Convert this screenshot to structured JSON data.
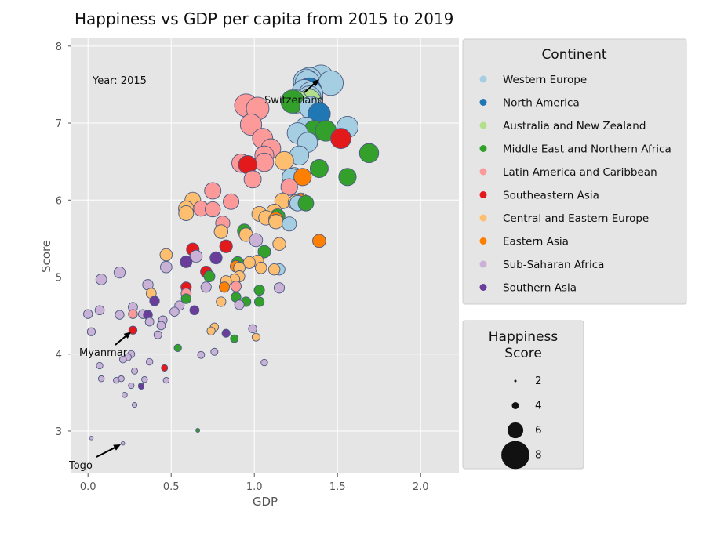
{
  "chart_data": {
    "type": "scatter",
    "title": "Happiness vs GDP per capita from 2015 to 2019",
    "xlabel": "GDP",
    "ylabel": "Score",
    "xlim": [
      -0.1,
      2.23
    ],
    "ylim": [
      2.45,
      8.1
    ],
    "xticks": [
      "0.0",
      "0.5",
      "1.0",
      "1.5",
      "2.0"
    ],
    "yticks": [
      "3",
      "4",
      "5",
      "6",
      "7",
      "8"
    ],
    "grid": true,
    "year_label": "Year: 2015",
    "continent_legend": {
      "title": "Continent",
      "placement": "top-right outside",
      "items": [
        {
          "name": "Western Europe",
          "color": "#a6cee3"
        },
        {
          "name": "North America",
          "color": "#1f78b4"
        },
        {
          "name": "Australia and New Zealand",
          "color": "#b2df8a"
        },
        {
          "name": "Middle East and Northern Africa",
          "color": "#33a02c"
        },
        {
          "name": "Latin America and Caribbean",
          "color": "#fb9a99"
        },
        {
          "name": "Southeastern Asia",
          "color": "#e31a1c"
        },
        {
          "name": "Central and Eastern Europe",
          "color": "#fdbf6f"
        },
        {
          "name": "Eastern Asia",
          "color": "#ff7f00"
        },
        {
          "name": "Sub-Saharan Africa",
          "color": "#cab2d6"
        },
        {
          "name": "Southern Asia",
          "color": "#6a3d9a"
        }
      ]
    },
    "size_legend": {
      "title": "Happiness Score",
      "placement": "right outside",
      "items": [
        {
          "label": "2",
          "value": 2
        },
        {
          "label": "4",
          "value": 4
        },
        {
          "label": "6",
          "value": 6
        },
        {
          "label": "8",
          "value": 8
        }
      ]
    },
    "annotations": [
      {
        "text": "Switzerland",
        "x": 1.4,
        "y": 7.59
      },
      {
        "text": "Myanmar",
        "x": 0.27,
        "y": 4.31
      },
      {
        "text": "Togo",
        "x": 0.21,
        "y": 2.84
      }
    ],
    "series": [
      {
        "name": "Western Europe",
        "points": [
          [
            1.4,
            7.59
          ],
          [
            1.33,
            7.56
          ],
          [
            1.31,
            7.54
          ],
          [
            1.32,
            7.52
          ],
          [
            1.46,
            7.52
          ],
          [
            1.33,
            7.43
          ],
          [
            1.3,
            7.41
          ],
          [
            1.34,
            7.38
          ],
          [
            1.33,
            7.33
          ],
          [
            1.34,
            7.2
          ],
          [
            1.31,
            6.94
          ],
          [
            1.56,
            6.95
          ],
          [
            1.26,
            6.87
          ],
          [
            1.32,
            6.75
          ],
          [
            1.27,
            6.58
          ],
          [
            1.24,
            6.31
          ],
          [
            1.22,
            6.3
          ],
          [
            1.26,
            5.96
          ],
          [
            1.21,
            5.69
          ],
          [
            1.15,
            5.1
          ]
        ]
      },
      {
        "name": "North America",
        "points": [
          [
            1.33,
            7.43
          ],
          [
            1.39,
            7.12
          ]
        ]
      },
      {
        "name": "Australia and New Zealand",
        "points": [
          [
            1.33,
            7.29
          ],
          [
            1.25,
            7.28
          ]
        ]
      },
      {
        "name": "Middle East and Northern Africa",
        "points": [
          [
            1.23,
            7.28
          ],
          [
            1.36,
            6.9
          ],
          [
            1.43,
            6.9
          ],
          [
            1.69,
            6.61
          ],
          [
            1.39,
            6.41
          ],
          [
            1.56,
            6.3
          ],
          [
            1.31,
            5.96
          ],
          [
            0.94,
            5.6
          ],
          [
            1.06,
            5.33
          ],
          [
            1.14,
            5.79
          ],
          [
            0.9,
            5.19
          ],
          [
            0.73,
            5.01
          ],
          [
            0.89,
            4.74
          ],
          [
            0.95,
            4.68
          ],
          [
            0.59,
            4.72
          ],
          [
            1.03,
            4.68
          ],
          [
            0.88,
            4.2
          ],
          [
            0.54,
            4.08
          ],
          [
            1.03,
            4.83
          ],
          [
            0.66,
            3.01
          ]
        ]
      },
      {
        "name": "Latin America and Caribbean",
        "points": [
          [
            0.95,
            7.23
          ],
          [
            1.02,
            7.19
          ],
          [
            0.98,
            6.98
          ],
          [
            1.05,
            6.8
          ],
          [
            1.1,
            6.67
          ],
          [
            1.06,
            6.58
          ],
          [
            0.92,
            6.48
          ],
          [
            1.06,
            6.49
          ],
          [
            0.99,
            6.27
          ],
          [
            1.21,
            6.17
          ],
          [
            0.75,
            6.12
          ],
          [
            0.86,
            5.98
          ],
          [
            0.68,
            5.89
          ],
          [
            0.75,
            5.88
          ],
          [
            0.81,
            5.7
          ],
          [
            0.89,
            4.88
          ],
          [
            0.59,
            4.79
          ],
          [
            0.27,
            4.52
          ]
        ]
      },
      {
        "name": "Southeastern Asia",
        "points": [
          [
            1.52,
            6.8
          ],
          [
            0.96,
            6.46
          ],
          [
            0.63,
            5.36
          ],
          [
            0.83,
            5.4
          ],
          [
            0.71,
            5.07
          ],
          [
            0.59,
            4.87
          ],
          [
            0.46,
            3.82
          ],
          [
            0.27,
            4.31
          ]
        ]
      },
      {
        "name": "Central and Eastern Europe",
        "points": [
          [
            1.18,
            6.51
          ],
          [
            1.28,
            5.99
          ],
          [
            1.25,
            5.97
          ],
          [
            1.03,
            5.82
          ],
          [
            1.07,
            5.77
          ],
          [
            1.12,
            5.85
          ],
          [
            1.17,
            5.99
          ],
          [
            1.13,
            5.72
          ],
          [
            0.8,
            5.59
          ],
          [
            0.95,
            5.55
          ],
          [
            1.15,
            5.43
          ],
          [
            0.63,
            6.0
          ],
          [
            0.59,
            5.89
          ],
          [
            0.59,
            5.83
          ],
          [
            0.47,
            5.29
          ],
          [
            0.97,
            5.19
          ],
          [
            1.02,
            5.21
          ],
          [
            1.04,
            5.12
          ],
          [
            0.91,
            5.12
          ],
          [
            1.12,
            5.1
          ],
          [
            0.91,
            5.01
          ],
          [
            0.83,
            4.95
          ],
          [
            0.88,
            4.97
          ],
          [
            0.8,
            4.68
          ],
          [
            0.38,
            4.79
          ],
          [
            0.76,
            4.35
          ],
          [
            0.74,
            4.3
          ],
          [
            1.01,
            4.22
          ]
        ]
      },
      {
        "name": "Eastern Asia",
        "points": [
          [
            1.29,
            6.3
          ],
          [
            1.27,
            5.98
          ],
          [
            1.39,
            5.47
          ],
          [
            1.13,
            5.75
          ],
          [
            0.89,
            5.14
          ],
          [
            0.82,
            4.87
          ]
        ]
      },
      {
        "name": "Sub-Saharan Africa",
        "points": [
          [
            1.01,
            5.48
          ],
          [
            0.65,
            5.27
          ],
          [
            0.47,
            5.13
          ],
          [
            0.19,
            5.06
          ],
          [
            0.08,
            4.97
          ],
          [
            0.71,
            4.87
          ],
          [
            1.15,
            4.86
          ],
          [
            0.36,
            4.9
          ],
          [
            0.27,
            4.61
          ],
          [
            0.07,
            4.57
          ],
          [
            0.55,
            4.63
          ],
          [
            0.52,
            4.55
          ],
          [
            0.91,
            4.64
          ],
          [
            0.45,
            4.44
          ],
          [
            0.37,
            4.42
          ],
          [
            0.44,
            4.37
          ],
          [
            0.19,
            4.51
          ],
          [
            0.0,
            4.52
          ],
          [
            0.33,
            4.52
          ],
          [
            0.36,
            4.51
          ],
          [
            0.99,
            4.33
          ],
          [
            0.42,
            4.25
          ],
          [
            0.02,
            4.29
          ],
          [
            0.76,
            4.03
          ],
          [
            0.68,
            3.99
          ],
          [
            0.26,
            4.0
          ],
          [
            0.24,
            3.96
          ],
          [
            0.21,
            3.93
          ],
          [
            0.37,
            3.9
          ],
          [
            1.06,
            3.89
          ],
          [
            0.07,
            3.85
          ],
          [
            0.28,
            3.78
          ],
          [
            0.08,
            3.68
          ],
          [
            0.17,
            3.66
          ],
          [
            0.2,
            3.68
          ],
          [
            0.34,
            3.67
          ],
          [
            0.47,
            3.66
          ],
          [
            0.26,
            3.59
          ],
          [
            0.32,
            3.59
          ],
          [
            0.22,
            3.47
          ],
          [
            0.28,
            3.34
          ],
          [
            0.02,
            2.91
          ],
          [
            0.21,
            2.84
          ]
        ]
      },
      {
        "name": "Southern Asia",
        "points": [
          [
            0.59,
            5.2
          ],
          [
            0.77,
            5.25
          ],
          [
            0.4,
            4.69
          ],
          [
            0.64,
            4.57
          ],
          [
            0.83,
            4.27
          ],
          [
            0.36,
            4.51
          ],
          [
            0.32,
            3.58
          ]
        ]
      }
    ]
  }
}
